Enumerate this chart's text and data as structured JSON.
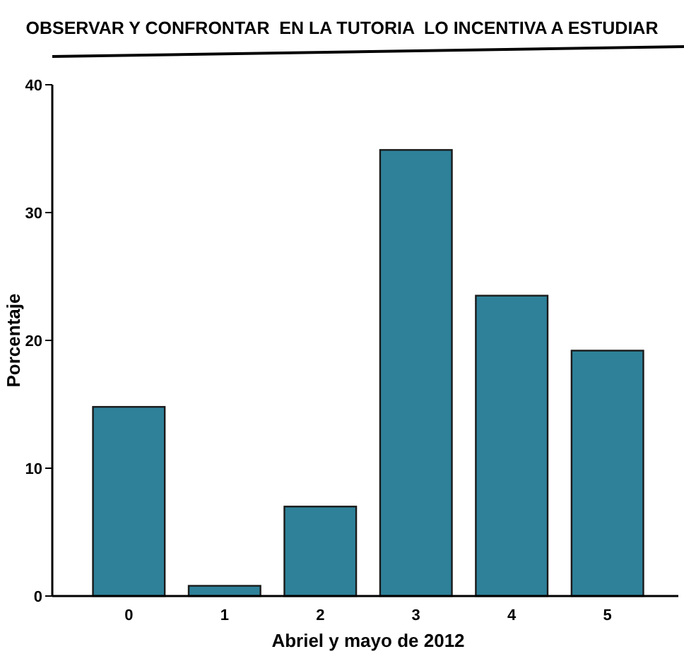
{
  "chart_data": {
    "type": "bar",
    "title": "OBSERVAR Y CONFRONTAR  EN LA TUTORIA  LO INCENTIVA A ESTUDIAR",
    "xlabel": "Abriel y mayo de 2012",
    "ylabel": "Porcentaje",
    "categories": [
      "0",
      "1",
      "2",
      "3",
      "4",
      "5"
    ],
    "values": [
      14.8,
      0.8,
      7.0,
      34.9,
      23.5,
      19.2
    ],
    "color": "#2e8199",
    "ylim": [
      0,
      40
    ],
    "yticks": [
      0,
      10,
      20,
      30,
      40
    ],
    "grid": false
  }
}
